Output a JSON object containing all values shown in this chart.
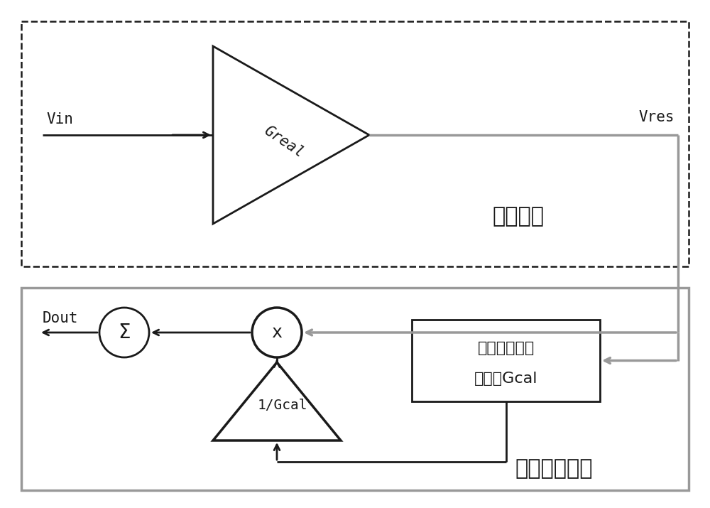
{
  "bg_color": "#ffffff",
  "gray": "#999999",
  "dark": "#1a1a1a",
  "analog_label": "模拟电路",
  "digital_label": "数字校准电路",
  "amp_label": "Greal",
  "gcal_label": "1/Gcal",
  "cal_box_line1": "校正计算出每",
  "cal_box_line2": "一级的Gcal",
  "sum_symbol": "Σ",
  "mult_symbol": "x",
  "vin_text": "Vin",
  "vres_text": "Vres",
  "dout_text": "Dout",
  "lw": 2.0,
  "glw": 2.5
}
